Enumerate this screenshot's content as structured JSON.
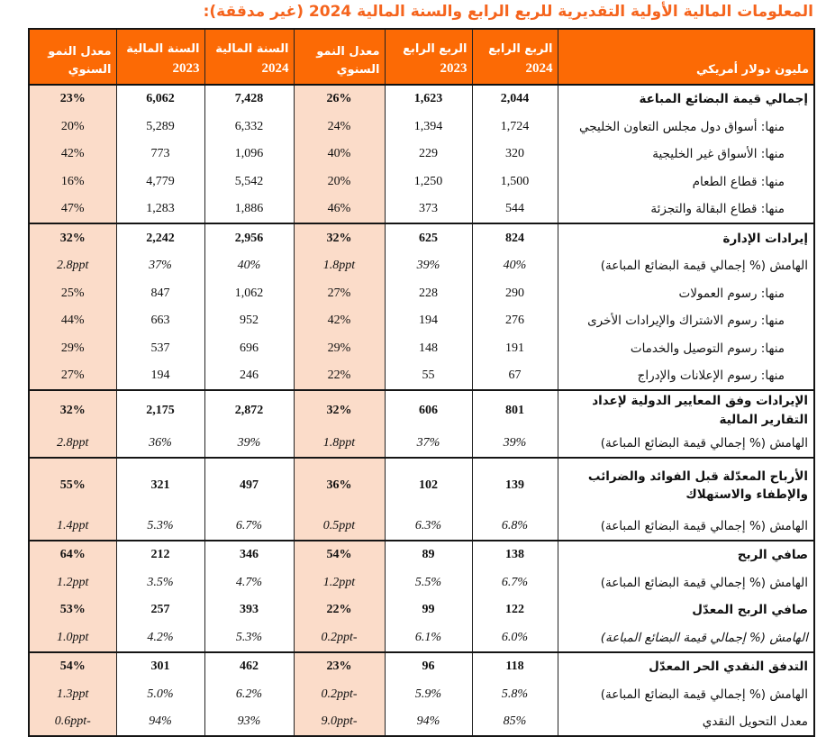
{
  "title": "المعلومات المالية الأولية التقديرية للربع الرابع والسنة المالية 2024 (غير مدققة):",
  "colors": {
    "title_color": "#F5641D",
    "header_bg": "#FC6A05",
    "growth_column_bg": "#FBDCC9",
    "border": "#151515"
  },
  "header": {
    "unit_label": "مليون دولار أمريكي",
    "columns": [
      {
        "line1": "الربع الرابع",
        "line2": "2024"
      },
      {
        "line1": "الربع الرابع",
        "line2": "2023"
      },
      {
        "line1": "معدل النمو",
        "line2": "السنوي"
      },
      {
        "line1": "السنة المالية",
        "line2": "2024"
      },
      {
        "line1": "السنة المالية",
        "line2": "2023"
      },
      {
        "line1": "معدل النمو",
        "line2": "السنوي"
      }
    ]
  },
  "sections": [
    {
      "rows": [
        {
          "label": "إجمالي قيمة البضائع المباعة",
          "values": [
            "2,044",
            "1,623",
            "26%",
            "7,428",
            "6,062",
            "23%"
          ]
        },
        {
          "label": "منها: أسواق دول مجلس التعاون الخليجي",
          "values": [
            "1,724",
            "1,394",
            "24%",
            "6,332",
            "5,289",
            "20%"
          ]
        },
        {
          "label": "منها: الأسواق غير الخليجية",
          "values": [
            "320",
            "229",
            "40%",
            "1,096",
            "773",
            "42%"
          ]
        },
        {
          "label": "منها: قطاع الطعام",
          "values": [
            "1,500",
            "1,250",
            "20%",
            "5,542",
            "4,779",
            "16%"
          ]
        },
        {
          "label": "منها: قطاع البقالة والتجزئة",
          "values": [
            "544",
            "373",
            "46%",
            "1,886",
            "1,283",
            "47%"
          ]
        }
      ]
    },
    {
      "rows": [
        {
          "label": "إيرادات الإدارة",
          "values": [
            "824",
            "625",
            "32%",
            "2,956",
            "2,242",
            "32%"
          ]
        },
        {
          "label": "الهامش (% إجمالي قيمة البضائع المباعة)",
          "values": [
            "40%",
            "39%",
            "1.8ppt",
            "40%",
            "37%",
            "2.8ppt"
          ]
        },
        {
          "label": "منها: رسوم العمولات",
          "values": [
            "290",
            "228",
            "27%",
            "1,062",
            "847",
            "25%"
          ]
        },
        {
          "label": "منها: رسوم الاشتراك والإيرادات الأخرى",
          "values": [
            "276",
            "194",
            "42%",
            "952",
            "663",
            "44%"
          ]
        },
        {
          "label": "منها: رسوم التوصيل والخدمات",
          "values": [
            "191",
            "148",
            "29%",
            "696",
            "537",
            "29%"
          ]
        },
        {
          "label": "منها: رسوم الإعلانات والإدراج",
          "values": [
            "67",
            "55",
            "22%",
            "246",
            "194",
            "27%"
          ]
        }
      ]
    },
    {
      "rows": [
        {
          "label": "الإيرادات وفق المعايير الدولية لإعداد التقارير المالية",
          "values": [
            "801",
            "606",
            "32%",
            "2,872",
            "2,175",
            "32%"
          ]
        },
        {
          "label": "الهامش (% إجمالي قيمة البضائع المباعة)",
          "values": [
            "39%",
            "37%",
            "1.8ppt",
            "39%",
            "36%",
            "2.8ppt"
          ]
        }
      ]
    },
    {
      "rows": [
        {
          "label": "الأرباح المعدّلة قبل الفوائد والضرائب والإطفاء والاستهلاك",
          "values": [
            "139",
            "102",
            "36%",
            "497",
            "321",
            "55%"
          ]
        },
        {
          "label": "الهامش (% إجمالي قيمة البضائع المباعة)",
          "values": [
            "6.8%",
            "6.3%",
            "0.5ppt",
            "6.7%",
            "5.3%",
            "1.4ppt"
          ]
        }
      ]
    },
    {
      "rows": [
        {
          "label": "صافي الربح",
          "values": [
            "138",
            "89",
            "54%",
            "346",
            "212",
            "64%"
          ]
        },
        {
          "label": "الهامش (% إجمالي قيمة البضائع المباعة)",
          "values": [
            "6.7%",
            "5.5%",
            "1.2ppt",
            "4.7%",
            "3.5%",
            "1.2ppt"
          ]
        },
        {
          "label": "صافي الربح المعدّل",
          "values": [
            "122",
            "99",
            "22%",
            "393",
            "257",
            "53%"
          ]
        },
        {
          "label": "الهامش (% إجمالي قيمة البضائع المباعة)",
          "values": [
            "6.0%",
            "6.1%",
            "-0.2ppt",
            "5.3%",
            "4.2%",
            "1.0ppt"
          ]
        }
      ]
    },
    {
      "rows": [
        {
          "label": "التدفق النقدي الحر المعدّل",
          "values": [
            "118",
            "96",
            "23%",
            "462",
            "301",
            "54%"
          ]
        },
        {
          "label": "الهامش (% إجمالي قيمة البضائع المباعة)",
          "values": [
            "5.8%",
            "5.9%",
            "-0.2ppt",
            "6.2%",
            "5.0%",
            "1.3ppt"
          ]
        },
        {
          "label": "معدل التحويل النقدي",
          "values": [
            "85%",
            "94%",
            "-9.0ppt",
            "93%",
            "94%",
            "-0.6ppt"
          ]
        }
      ]
    }
  ]
}
